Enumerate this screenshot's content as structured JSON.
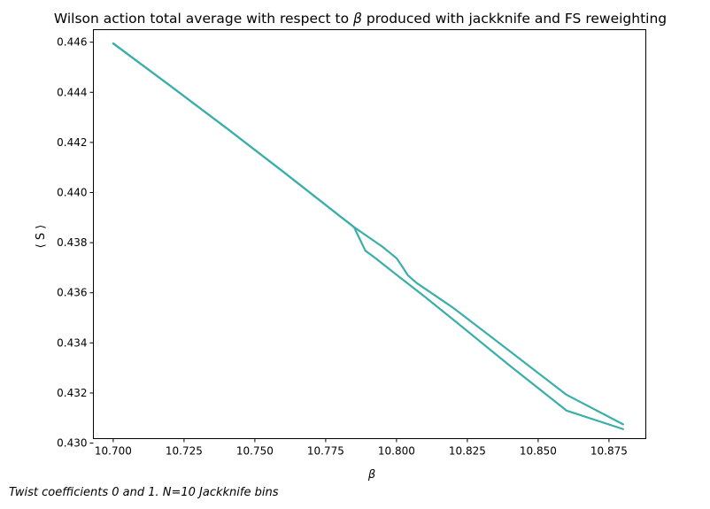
{
  "chart_data": {
    "type": "line",
    "title_prefix": "Wilson action total average with respect to ",
    "title_symbol": "β",
    "title_suffix": " produced with jackknife and FS reweighting",
    "xlabel": "β",
    "ylabel": "⟨ S ⟩",
    "xlim": [
      10.693,
      10.888
    ],
    "ylim": [
      0.43018,
      0.4465
    ],
    "xticks": [
      10.7,
      10.725,
      10.75,
      10.775,
      10.8,
      10.825,
      10.85,
      10.875
    ],
    "xtick_labels": [
      "10.700",
      "10.725",
      "10.750",
      "10.775",
      "10.800",
      "10.825",
      "10.850",
      "10.875"
    ],
    "yticks": [
      0.43,
      0.432,
      0.434,
      0.436,
      0.438,
      0.44,
      0.442,
      0.444,
      0.446
    ],
    "ytick_labels": [
      "0.430",
      "0.432",
      "0.434",
      "0.436",
      "0.438",
      "0.440",
      "0.442",
      "0.444",
      "0.446"
    ],
    "grid": false,
    "line_color": "#3aafa9",
    "series": [
      {
        "x": [
          10.7,
          10.72,
          10.74,
          10.76,
          10.78,
          10.785,
          10.787,
          10.789,
          10.792,
          10.8,
          10.81,
          10.82,
          10.84,
          10.86,
          10.88
        ],
        "y": [
          0.44595,
          0.44427,
          0.44257,
          0.44083,
          0.43906,
          0.43862,
          0.43815,
          0.43768,
          0.43743,
          0.43672,
          0.43584,
          0.43493,
          0.43309,
          0.4313,
          0.43056
        ]
      },
      {
        "x": [
          10.7,
          10.72,
          10.74,
          10.76,
          10.78,
          10.785,
          10.79,
          10.795,
          10.8,
          10.802,
          10.804,
          10.807,
          10.82,
          10.84,
          10.86,
          10.88
        ],
        "y": [
          0.44595,
          0.44427,
          0.44257,
          0.44083,
          0.43906,
          0.43862,
          0.43823,
          0.43784,
          0.43738,
          0.43705,
          0.4367,
          0.4364,
          0.4354,
          0.43367,
          0.43193,
          0.43075
        ]
      }
    ]
  },
  "caption": "Twist coefficients 0 and 1. N=10 Jackknife bins"
}
